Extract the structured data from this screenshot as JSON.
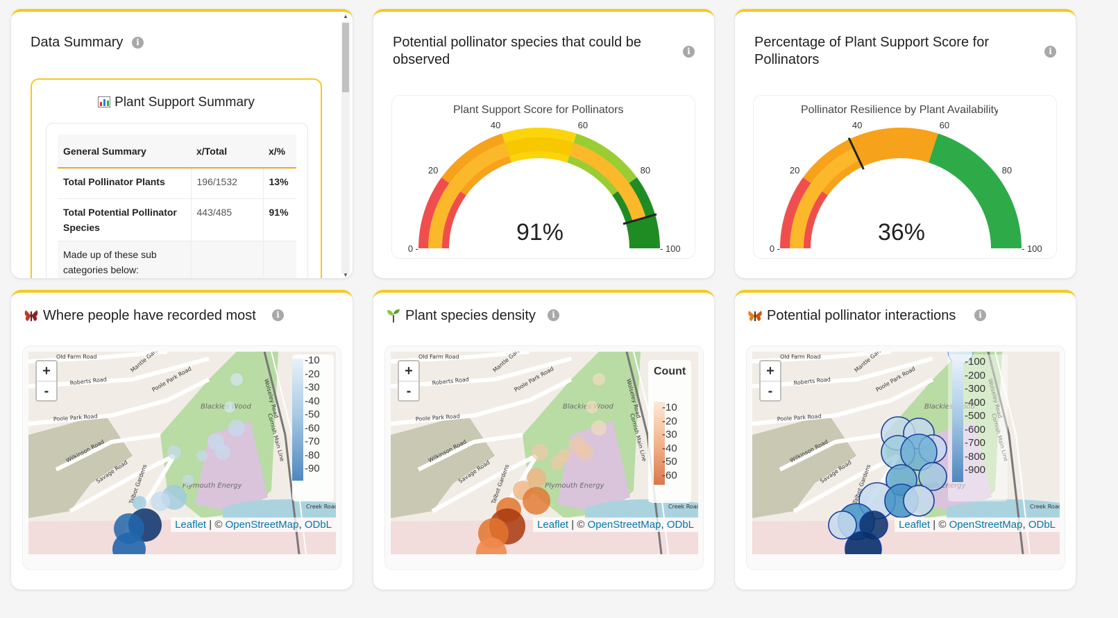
{
  "summary": {
    "title": "Data Summary",
    "box_title": "Plant Support Summary",
    "headers": [
      "General Summary",
      "x/Total",
      "x/%"
    ],
    "rows": [
      {
        "label": "Total Pollinator Plants",
        "ratio": "196/1532",
        "pct": "13%"
      },
      {
        "label": "Total Potential Pollinator Species",
        "ratio": "443/485",
        "pct": "91%"
      },
      {
        "label": "Made up of these sub categories below:",
        "ratio": "",
        "pct": ""
      }
    ]
  },
  "gauge1": {
    "card_title": "Potential pollinator species that could be observed",
    "chart_title": "Plant Support Score for Pollinators",
    "value_text": "91%",
    "value": 91,
    "ticks": [
      "0",
      "20",
      "40",
      "60",
      "80",
      "100"
    ]
  },
  "gauge2": {
    "card_title": "Percentage of Plant Support Score for Pollinators",
    "chart_title": "Pollinator Resilience by Plant Availability",
    "value_text": "36%",
    "value": 36,
    "ticks": [
      "0",
      "20",
      "40",
      "60",
      "80",
      "100"
    ]
  },
  "map1": {
    "title": "Where people have recorded most",
    "legend": [
      "10",
      "20",
      "30",
      "40",
      "50",
      "60",
      "70",
      "80",
      "90"
    ]
  },
  "map2": {
    "title": "Plant species density",
    "legend_title": "Count",
    "legend": [
      "10",
      "20",
      "30",
      "40",
      "50",
      "60"
    ]
  },
  "map3": {
    "title": "Potential pollinator interactions",
    "legend": [
      "100",
      "200",
      "300",
      "400",
      "500",
      "600",
      "700",
      "800",
      "900"
    ]
  },
  "map_common": {
    "zoom_in": "+",
    "zoom_out": "-",
    "leaflet": "Leaflet",
    "sep": " | © ",
    "osm": "OpenStreetMap",
    "odbl": "ODbL",
    "roads": [
      "Old Farm Road",
      "Roberts Road",
      "Mantle Gardens",
      "Poole Park Road",
      "Poole Park Road",
      "Wilkinson Road",
      "Savage Road",
      "Talbot Gardens",
      "Wolseley Road",
      "Cornish Main Line",
      "Creek Road"
    ],
    "places": [
      "Blackies Wood",
      "Plymouth Energy"
    ]
  },
  "info_glyph": "i",
  "colors": {
    "accent": "#f7c91d",
    "red": "#f04e4e",
    "orange": "#f7a21b",
    "yellow": "#fcd40c",
    "lightgreen": "#9acd32",
    "green": "#2eab48",
    "darkgreen": "#1f8c23",
    "blue": "#2166ac",
    "orange_dens": "#e35a14"
  }
}
